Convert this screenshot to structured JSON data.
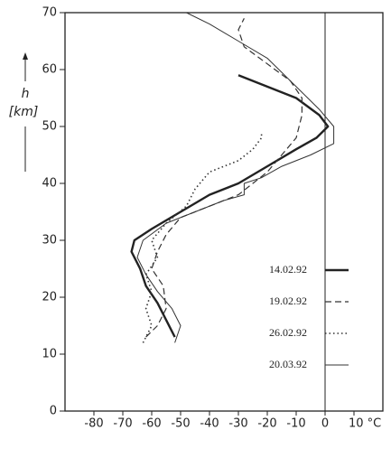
{
  "chart_data": {
    "type": "line",
    "y_label_symbol": "h",
    "y_label_unit": "[km]",
    "xlim": [
      -90,
      20
    ],
    "ylim": [
      0,
      70
    ],
    "xticks": [
      -80,
      -70,
      -60,
      -50,
      -40,
      -30,
      -20,
      -10,
      0,
      {
        "value": 10,
        "label": "10 °C"
      }
    ],
    "yticks": [
      0,
      10,
      20,
      30,
      40,
      50,
      60,
      70
    ],
    "vline": 0,
    "legend": "lower right",
    "series": [
      {
        "name": "14.02.92",
        "color": "#222",
        "style": "solid",
        "width": 2.4,
        "x": [
          -52,
          -55,
          -58,
          -62,
          -64,
          -67,
          -66,
          -60,
          -50,
          -40,
          -30,
          -20,
          -10,
          -3,
          1,
          -2,
          -10,
          -20,
          -30
        ],
        "values": [
          13,
          16,
          19,
          22,
          25,
          28,
          30,
          32,
          35,
          38,
          40,
          43,
          46,
          48,
          50,
          52,
          55,
          57,
          59
        ]
      },
      {
        "name": "19.02.92",
        "color": "#333",
        "style": "dashed",
        "width": 1.2,
        "x": [
          -62,
          -58,
          -55,
          -56,
          -60,
          -58,
          -55,
          -50,
          -40,
          -30,
          -25,
          -20,
          -15,
          -10,
          -8,
          -8,
          -12,
          -20,
          -28,
          -30,
          -28
        ],
        "values": [
          13,
          15,
          18,
          22,
          25,
          28,
          31,
          34,
          36,
          38,
          40,
          42,
          45,
          48,
          52,
          55,
          58,
          61,
          64,
          67,
          69
        ]
      },
      {
        "name": "26.02.92",
        "color": "#333",
        "style": "dotted",
        "width": 1.6,
        "x": [
          -63,
          -60,
          -62,
          -60,
          -62,
          -58,
          -60,
          -55,
          -48,
          -45,
          -40,
          -30,
          -25,
          -22,
          -22
        ],
        "values": [
          12,
          15,
          18,
          21,
          24,
          27,
          30,
          33,
          36,
          39,
          42,
          44,
          46,
          48,
          49
        ]
      },
      {
        "name": "20.03.92",
        "color": "#333",
        "style": "solid",
        "width": 1,
        "x": [
          -52,
          -50,
          -53,
          -58,
          -62,
          -65,
          -63,
          -55,
          -45,
          -35,
          -28,
          -28,
          -22,
          -15,
          -5,
          3,
          3,
          -2,
          -10,
          -20,
          -30,
          -40,
          -48
        ],
        "values": [
          12,
          15,
          18,
          21,
          24,
          27,
          30,
          33,
          35,
          37,
          38,
          40,
          41,
          43,
          45,
          47,
          50,
          53,
          57,
          62,
          65,
          68,
          70
        ]
      }
    ]
  }
}
